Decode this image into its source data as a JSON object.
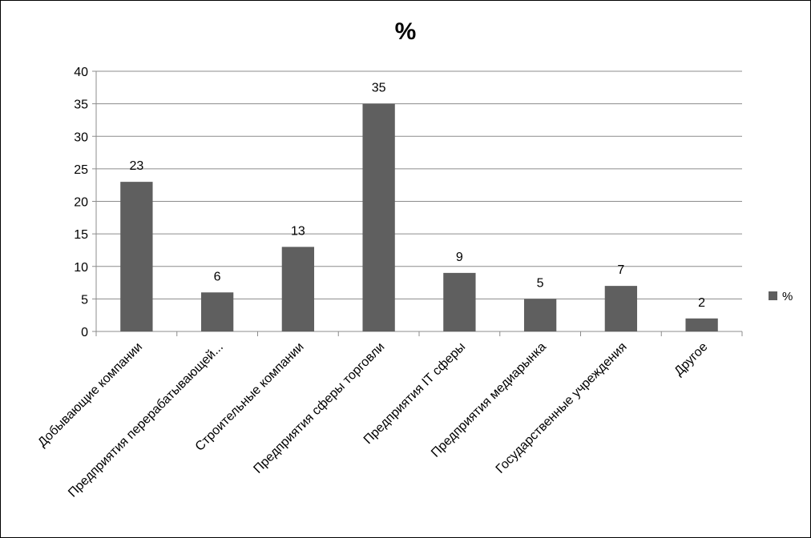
{
  "chart_data": {
    "type": "bar",
    "title": "%",
    "xlabel": "",
    "ylabel": "",
    "ylim": [
      0,
      40
    ],
    "yticks": [
      0,
      5,
      10,
      15,
      20,
      25,
      30,
      35,
      40
    ],
    "grid": true,
    "legend_position": "right",
    "bar_color": "#5f5f5f",
    "categories": [
      "Добывающие компании",
      "Предприятия перерабатывающей...",
      "Строительные компании",
      "Предприятия сферы торговли",
      "Предприятия IT сферы",
      "Предприятия медиарынка",
      "Государственные учреждения",
      "Другое"
    ],
    "series": [
      {
        "name": "%",
        "values": [
          23,
          6,
          13,
          35,
          9,
          5,
          7,
          2
        ]
      }
    ]
  }
}
